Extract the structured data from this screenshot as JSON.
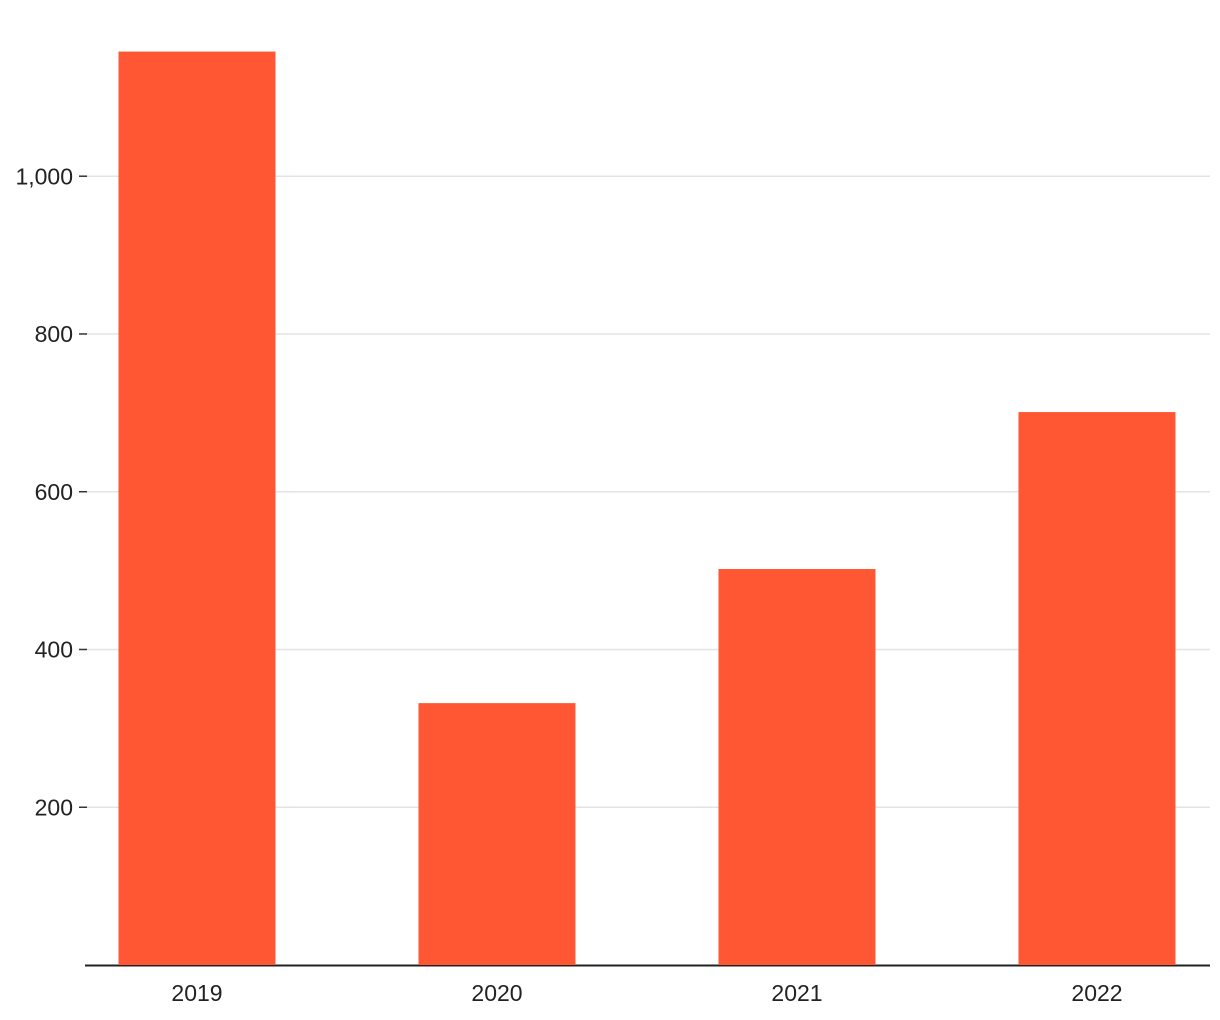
{
  "chart_data": {
    "type": "bar",
    "categories": [
      "2019",
      "2020",
      "2021",
      "2022"
    ],
    "values": [
      1158,
      332,
      502,
      701
    ],
    "color": "#ff5733",
    "ylim": [
      0,
      1160
    ],
    "yticks": [
      200,
      400,
      600,
      800,
      {
        "value": 1000,
        "label": "1,000"
      }
    ],
    "grid": true
  }
}
